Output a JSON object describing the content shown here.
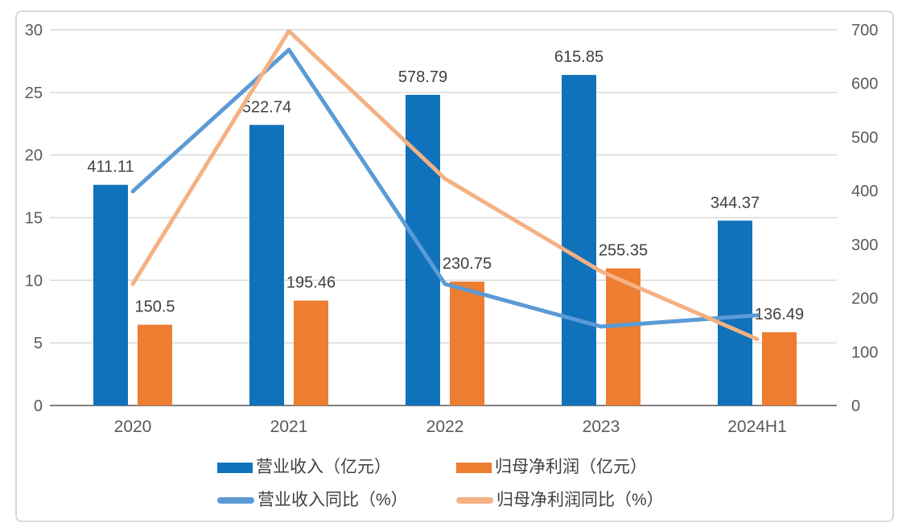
{
  "chart_data": {
    "type": "bar",
    "subtype": "combo-bar-line-dual-axis",
    "title": "",
    "categories": [
      "2020",
      "2021",
      "2022",
      "2023",
      "2024H1"
    ],
    "series": [
      {
        "name": "营业收入（亿元）",
        "type": "bar",
        "axis": "right",
        "color": "#1072BA",
        "values": [
          411.11,
          522.74,
          578.79,
          615.85,
          344.37
        ],
        "labels": [
          "411.11",
          "522.74",
          "578.79",
          "615.85",
          "344.37"
        ]
      },
      {
        "name": "归母净利润（亿元）",
        "type": "bar",
        "axis": "right",
        "color": "#ED7D31",
        "values": [
          150.5,
          195.46,
          230.75,
          255.35,
          136.49
        ],
        "labels": [
          "150.5",
          "195.46",
          "230.75",
          "255.35",
          "136.49"
        ]
      },
      {
        "name": "营业收入同比（%）",
        "type": "line",
        "axis": "left",
        "color": "#5B9BD5",
        "values": [
          17.1,
          28.4,
          9.7,
          6.3,
          7.2
        ]
      },
      {
        "name": "归母净利润同比（%）",
        "type": "line",
        "axis": "left",
        "color": "#F4B183",
        "values": [
          9.7,
          29.9,
          18.1,
          10.7,
          5.3
        ]
      }
    ],
    "left_axis": {
      "min": 0,
      "max": 30,
      "step": 5,
      "ticks": [
        0,
        5,
        10,
        15,
        20,
        25,
        30
      ]
    },
    "right_axis": {
      "min": 0,
      "max": 700,
      "step": 100,
      "ticks": [
        0,
        100,
        200,
        300,
        400,
        500,
        600,
        700
      ]
    },
    "grid": true,
    "legend_position": "bottom",
    "style": {
      "gridline_color": "#D9D9D9",
      "baseline_color": "#808080",
      "tick_label_color": "#595959",
      "data_label_color": "#404040",
      "border_color": "#D9D9D9",
      "background": "#FFFFFF"
    }
  }
}
